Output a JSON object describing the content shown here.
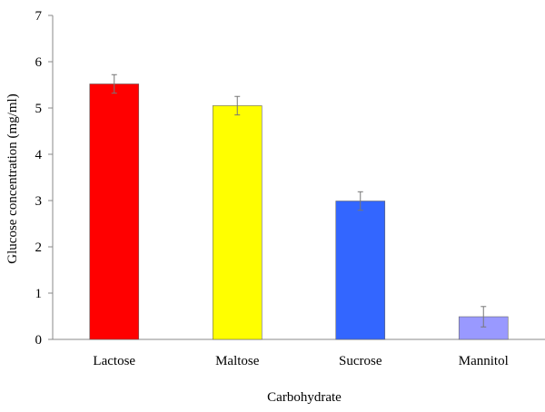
{
  "chart_data": {
    "type": "bar",
    "categories": [
      "Lactose",
      "Maltose",
      "Sucrose",
      "Mannitol"
    ],
    "values": [
      5.52,
      5.05,
      2.99,
      0.49
    ],
    "errors": [
      0.2,
      0.2,
      0.2,
      0.22
    ],
    "colors": [
      "#ff0000",
      "#ffff00",
      "#3366ff",
      "#9999ff"
    ],
    "xlabel": "Carbohydrate",
    "ylabel": "Glucose concentration (mg/ml)",
    "ylim": [
      0,
      7
    ],
    "yticks": [
      "0",
      "1",
      "2",
      "3",
      "4",
      "5",
      "6",
      "7"
    ],
    "grid": false,
    "legend": "none"
  }
}
